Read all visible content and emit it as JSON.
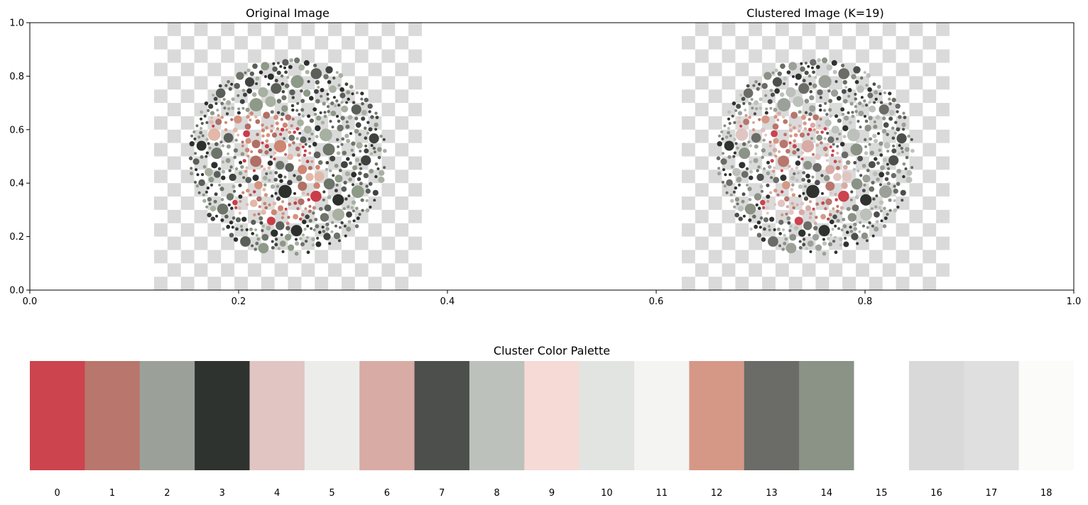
{
  "chart_data": [
    {
      "type": "image",
      "panels": [
        {
          "title": "Original Image",
          "variant": "original"
        },
        {
          "title": "Clustered Image (K=19)",
          "variant": "clustered"
        }
      ],
      "x_ticks": [
        "0.0",
        "0.2",
        "0.4",
        "0.6",
        "0.8",
        "1.0"
      ],
      "y_ticks": [
        "0.0",
        "0.2",
        "0.4",
        "0.6",
        "0.8",
        "1.0"
      ],
      "xlim": [
        0,
        1
      ],
      "ylim": [
        0,
        1
      ],
      "grid": false
    },
    {
      "type": "palette",
      "title": "Cluster Color Palette",
      "labels": [
        "0",
        "1",
        "2",
        "3",
        "4",
        "5",
        "6",
        "7",
        "8",
        "9",
        "10",
        "11",
        "12",
        "13",
        "14",
        "15",
        "16",
        "17",
        "18"
      ],
      "colors": [
        "#cb444e",
        "#b9766d",
        "#9ba198",
        "#2f3330",
        "#e1c5c2",
        "#ecedea",
        "#d8aba5",
        "#4d4f4c",
        "#bcc1bb",
        "#f6dad6",
        "#e2e4e1",
        "#f4f4f2",
        "#d69886",
        "#6b6c67",
        "#8b9286",
        "#ffffff",
        "#d9d9d9",
        "#dfdfdf",
        "#fbfcf9"
      ]
    }
  ]
}
